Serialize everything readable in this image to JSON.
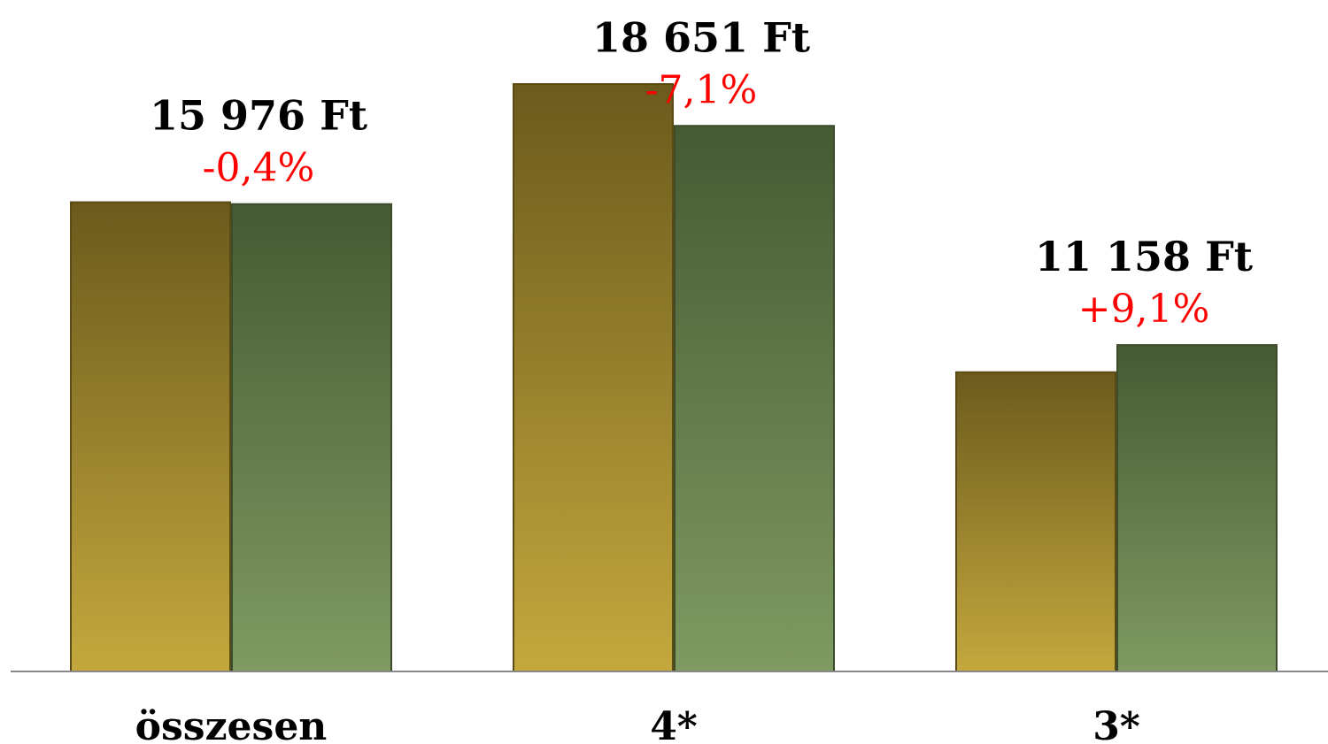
{
  "chart_data": {
    "type": "bar",
    "categories": [
      "összesen",
      "4*",
      "3*"
    ],
    "series": [
      {
        "values": [
          16040,
          20080,
          10230
        ]
      },
      {
        "values": [
          15976,
          18651,
          11158
        ]
      }
    ],
    "value_labels": [
      "15 976 Ft",
      "18 651 Ft",
      "11 158 Ft"
    ],
    "change_labels": [
      "-0,4%",
      "-7,1%",
      "+9,1%"
    ],
    "ylim": [
      0,
      23000
    ],
    "grid": false,
    "colors": {
      "series_0_top": "#6b5a1c",
      "series_0_bottom": "#c4a83e",
      "series_1_top": "#465a33",
      "series_1_bottom": "#7f9a62",
      "change_label": "#ff0000",
      "axis": "#888888"
    }
  }
}
